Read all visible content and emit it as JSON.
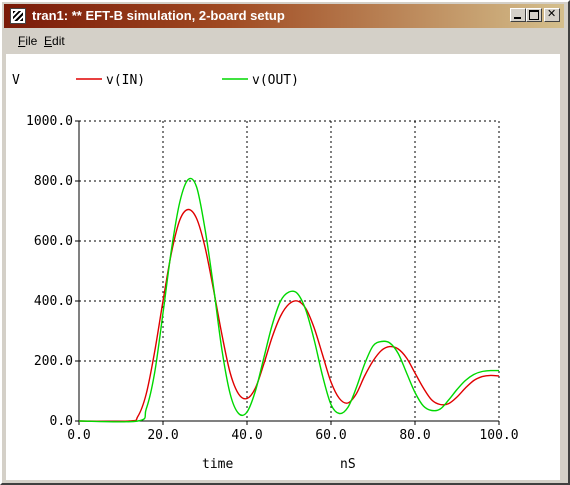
{
  "window": {
    "title": "tran1: ** EFT-B simulation, 2-board setup"
  },
  "menu": {
    "file": "File",
    "edit": "Edit"
  },
  "chart_data": {
    "type": "line",
    "ylabel": "V",
    "xlabel": "time",
    "xunit": "nS",
    "xlim": [
      0,
      100
    ],
    "ylim": [
      0,
      1000
    ],
    "x_ticks": [
      0,
      20,
      40,
      60,
      80,
      100
    ],
    "y_ticks": [
      0,
      200,
      400,
      600,
      800,
      1000
    ],
    "x_tick_labels": [
      "0.0",
      "20.0",
      "40.0",
      "60.0",
      "80.0",
      "100.0"
    ],
    "y_tick_labels": [
      "0.0",
      "200.0",
      "400.0",
      "600.0",
      "800.0",
      "1000.0"
    ],
    "grid": true,
    "legend_position": "top",
    "series": [
      {
        "name": "v(IN)",
        "color": "#e00000",
        "x": [
          0,
          12,
          14,
          16,
          18,
          20,
          22,
          24,
          26,
          28,
          30,
          32,
          34,
          36,
          38,
          40,
          42,
          44,
          46,
          48,
          50,
          52,
          54,
          56,
          58,
          60,
          62,
          64,
          66,
          68,
          70,
          72,
          74,
          76,
          78,
          80,
          82,
          84,
          86,
          88,
          90,
          92,
          94,
          96,
          98,
          100
        ],
        "values": [
          0,
          0,
          15,
          90,
          230,
          400,
          560,
          670,
          705,
          675,
          580,
          440,
          290,
          160,
          90,
          75,
          110,
          190,
          280,
          350,
          390,
          400,
          375,
          310,
          220,
          130,
          75,
          60,
          90,
          150,
          200,
          235,
          248,
          240,
          210,
          160,
          110,
          70,
          55,
          58,
          80,
          110,
          135,
          148,
          152,
          150
        ]
      },
      {
        "name": "v(OUT)",
        "color": "#00d800",
        "x": [
          0,
          14,
          16,
          18,
          20,
          22,
          24,
          26,
          28,
          30,
          32,
          34,
          36,
          38,
          40,
          42,
          44,
          46,
          48,
          50,
          52,
          54,
          56,
          58,
          60,
          62,
          64,
          66,
          68,
          70,
          72,
          74,
          76,
          78,
          80,
          82,
          84,
          86,
          88,
          90,
          92,
          94,
          96,
          98,
          100
        ],
        "values": [
          0,
          0,
          40,
          160,
          360,
          570,
          730,
          805,
          780,
          640,
          450,
          240,
          90,
          25,
          30,
          100,
          210,
          320,
          400,
          430,
          425,
          370,
          270,
          150,
          55,
          25,
          45,
          110,
          190,
          250,
          265,
          260,
          225,
          160,
          95,
          50,
          35,
          40,
          70,
          105,
          135,
          155,
          165,
          168,
          168
        ]
      }
    ]
  }
}
